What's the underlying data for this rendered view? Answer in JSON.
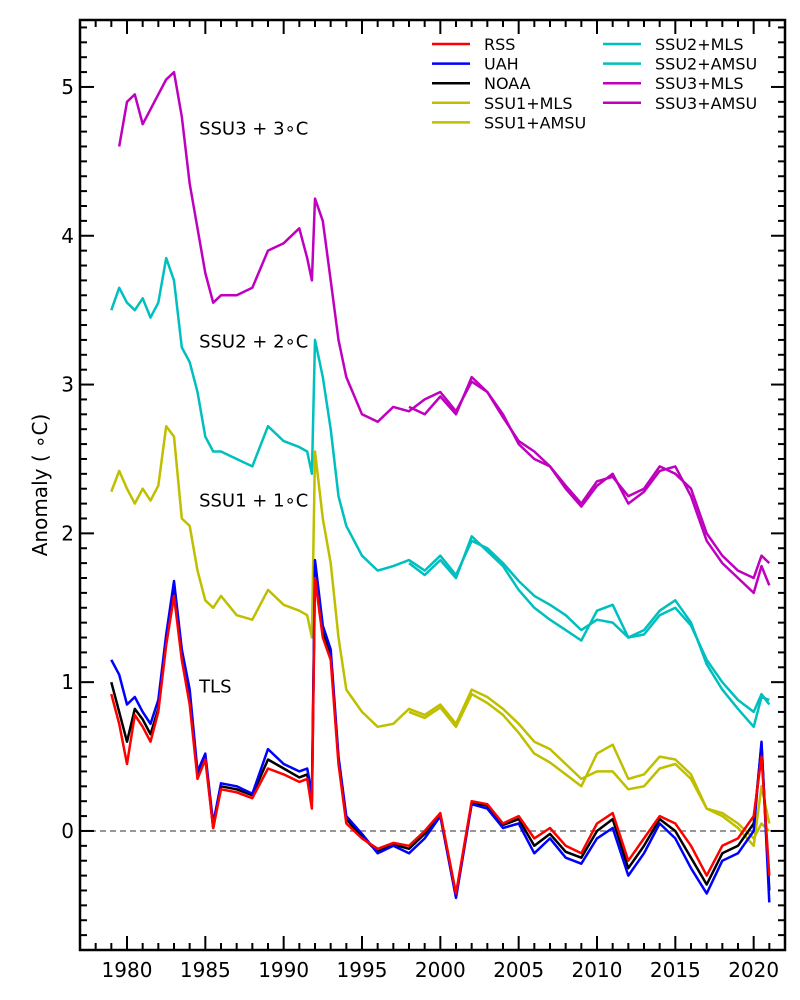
{
  "chart_data": {
    "type": "line",
    "title": "",
    "xlabel": "",
    "ylabel": "Anomaly ( ∘C)",
    "xlim": [
      1977,
      2022
    ],
    "ylim": [
      -0.8,
      5.45
    ],
    "xticks": [
      1980,
      1985,
      1990,
      1995,
      2000,
      2005,
      2010,
      2015,
      2020
    ],
    "xtick_labels": [
      "1980",
      "1985",
      "1990",
      "1995",
      "2000",
      "2005",
      "2010",
      "2015",
      "2020"
    ],
    "yticks": [
      0,
      1,
      2,
      3,
      4,
      5
    ],
    "ytick_labels": [
      "0",
      "1",
      "2",
      "3",
      "4",
      "5"
    ],
    "reference_line": {
      "y": 0,
      "style": "dashed",
      "color": "#777777"
    },
    "legend_position": "top-right",
    "annotations": [
      {
        "text": "SSU3 + 3∘C",
        "x": 1984.6,
        "y": 4.68
      },
      {
        "text": "SSU2 + 2∘C",
        "x": 1984.6,
        "y": 3.25
      },
      {
        "text": "SSU1 + 1∘C",
        "x": 1984.6,
        "y": 2.18
      },
      {
        "text": "TLS",
        "x": 1984.6,
        "y": 0.93
      }
    ],
    "series": [
      {
        "name": "RSS",
        "color": "#ff0000",
        "x": [
          1979,
          1979.5,
          1980,
          1980.5,
          1981,
          1981.5,
          1982,
          1982.5,
          1983,
          1983.5,
          1984,
          1984.5,
          1985,
          1985.5,
          1986,
          1987,
          1988,
          1989,
          1990,
          1991,
          1991.5,
          1991.8,
          1992,
          1992.5,
          1993,
          1993.5,
          1994,
          1995,
          1996,
          1997,
          1998,
          1999,
          2000,
          2001,
          2002,
          2003,
          2004,
          2005,
          2006,
          2007,
          2008,
          2009,
          2010,
          2011,
          2012,
          2013,
          2014,
          2015,
          2016,
          2017,
          2018,
          2019,
          2020,
          2020.5,
          2021
        ],
        "values": [
          0.92,
          0.72,
          0.45,
          0.78,
          0.7,
          0.6,
          0.8,
          1.25,
          1.58,
          1.15,
          0.85,
          0.35,
          0.48,
          0.02,
          0.28,
          0.26,
          0.22,
          0.42,
          0.38,
          0.33,
          0.35,
          0.15,
          1.7,
          1.3,
          1.15,
          0.45,
          0.05,
          -0.05,
          -0.12,
          -0.08,
          -0.1,
          0.0,
          0.12,
          -0.42,
          0.2,
          0.18,
          0.05,
          0.1,
          -0.05,
          0.02,
          -0.1,
          -0.15,
          0.05,
          0.12,
          -0.2,
          -0.05,
          0.1,
          0.05,
          -0.1,
          -0.3,
          -0.1,
          -0.05,
          0.1,
          0.5,
          -0.3
        ]
      },
      {
        "name": "UAH",
        "color": "#0000ff",
        "x": [
          1979,
          1979.5,
          1980,
          1980.5,
          1981,
          1981.5,
          1982,
          1982.5,
          1983,
          1983.5,
          1984,
          1984.5,
          1985,
          1985.5,
          1986,
          1987,
          1988,
          1989,
          1990,
          1991,
          1991.5,
          1991.8,
          1992,
          1992.5,
          1993,
          1993.5,
          1994,
          1995,
          1996,
          1997,
          1998,
          1999,
          2000,
          2001,
          2002,
          2003,
          2004,
          2005,
          2006,
          2007,
          2008,
          2009,
          2010,
          2011,
          2012,
          2013,
          2014,
          2015,
          2016,
          2017,
          2018,
          2019,
          2020,
          2020.5,
          2021
        ],
        "values": [
          1.15,
          1.05,
          0.85,
          0.9,
          0.8,
          0.72,
          0.88,
          1.32,
          1.68,
          1.22,
          0.95,
          0.4,
          0.52,
          0.05,
          0.32,
          0.3,
          0.25,
          0.55,
          0.45,
          0.4,
          0.42,
          0.25,
          1.82,
          1.38,
          1.22,
          0.5,
          0.1,
          -0.02,
          -0.15,
          -0.1,
          -0.15,
          -0.05,
          0.1,
          -0.45,
          0.18,
          0.15,
          0.02,
          0.05,
          -0.15,
          -0.05,
          -0.18,
          -0.22,
          -0.05,
          0.02,
          -0.3,
          -0.15,
          0.05,
          -0.05,
          -0.25,
          -0.42,
          -0.2,
          -0.15,
          0.0,
          0.6,
          -0.48
        ]
      },
      {
        "name": "NOAA",
        "color": "#000000",
        "x": [
          1979,
          1979.5,
          1980,
          1980.5,
          1981,
          1981.5,
          1982,
          1982.5,
          1983,
          1983.5,
          1984,
          1984.5,
          1985,
          1985.5,
          1986,
          1987,
          1988,
          1989,
          1990,
          1991,
          1991.5,
          1991.8,
          1992,
          1992.5,
          1993,
          1993.5,
          1994,
          1995,
          1996,
          1997,
          1998,
          1999,
          2000,
          2001,
          2002,
          2003,
          2004,
          2005,
          2006,
          2007,
          2008,
          2009,
          2010,
          2011,
          2012,
          2013,
          2014,
          2015,
          2016,
          2017,
          2018,
          2019,
          2020,
          2020.5,
          2021
        ],
        "values": [
          1.0,
          0.8,
          0.6,
          0.82,
          0.75,
          0.65,
          0.82,
          1.28,
          1.62,
          1.18,
          0.9,
          0.38,
          0.5,
          0.02,
          0.3,
          0.28,
          0.24,
          0.48,
          0.42,
          0.36,
          0.38,
          0.2,
          1.78,
          1.34,
          1.18,
          0.48,
          0.08,
          -0.04,
          -0.14,
          -0.09,
          -0.12,
          -0.02,
          0.11,
          -0.43,
          0.19,
          0.17,
          0.04,
          0.08,
          -0.1,
          -0.02,
          -0.14,
          -0.18,
          0.0,
          0.08,
          -0.25,
          -0.1,
          0.08,
          0.0,
          -0.18,
          -0.36,
          -0.15,
          -0.1,
          0.05,
          0.58,
          -0.4
        ]
      },
      {
        "name": "SSU1+MLS",
        "color": "#bfbf00",
        "x": [
          1979,
          1979.5,
          1980,
          1980.5,
          1981,
          1981.5,
          1982,
          1982.5,
          1983,
          1983.5,
          1984,
          1984.5,
          1985,
          1985.5,
          1986,
          1987,
          1988,
          1989,
          1990,
          1991,
          1991.5,
          1991.8,
          1992,
          1992.5,
          1993,
          1993.5,
          1994,
          1995,
          1996,
          1997,
          1998,
          1999,
          2000,
          2001,
          2002,
          2003,
          2004,
          2005,
          2006,
          2007,
          2008,
          2009,
          2010,
          2011,
          2012,
          2013,
          2014,
          2015,
          2016,
          2017,
          2018,
          2019,
          2020,
          2020.5,
          2021
        ],
        "values": [
          2.28,
          2.42,
          2.3,
          2.2,
          2.3,
          2.22,
          2.32,
          2.72,
          2.65,
          2.1,
          2.05,
          1.75,
          1.55,
          1.5,
          1.58,
          1.45,
          1.42,
          1.62,
          1.52,
          1.48,
          1.45,
          1.3,
          2.55,
          2.1,
          1.8,
          1.3,
          0.95,
          0.8,
          0.7,
          0.72,
          0.82,
          0.78,
          0.85,
          0.72,
          0.95,
          0.9,
          0.82,
          0.72,
          0.6,
          0.55,
          0.45,
          0.35,
          0.4,
          0.4,
          0.28,
          0.3,
          0.42,
          0.45,
          0.35,
          0.15,
          0.12,
          0.05,
          -0.05,
          0.05,
          0.0
        ]
      },
      {
        "name": "SSU1+AMSU",
        "color": "#bfbf00",
        "x": [
          1998,
          1999,
          2000,
          2001,
          2002,
          2003,
          2004,
          2005,
          2006,
          2007,
          2008,
          2009,
          2010,
          2011,
          2012,
          2013,
          2014,
          2015,
          2016,
          2017,
          2018,
          2019,
          2020,
          2020.5,
          2021
        ],
        "values": [
          0.8,
          0.76,
          0.83,
          0.7,
          0.92,
          0.86,
          0.78,
          0.66,
          0.52,
          0.46,
          0.38,
          0.3,
          0.52,
          0.58,
          0.35,
          0.38,
          0.5,
          0.48,
          0.38,
          0.15,
          0.1,
          0.02,
          -0.1,
          0.3,
          0.05
        ]
      },
      {
        "name": "SSU2+MLS",
        "color": "#00bfbf",
        "x": [
          1979,
          1979.5,
          1980,
          1980.5,
          1981,
          1981.5,
          1982,
          1982.5,
          1983,
          1983.5,
          1984,
          1984.5,
          1985,
          1985.5,
          1986,
          1987,
          1988,
          1989,
          1990,
          1991,
          1991.5,
          1991.8,
          1992,
          1992.5,
          1993,
          1993.5,
          1994,
          1995,
          1996,
          1997,
          1998,
          1999,
          2000,
          2001,
          2002,
          2003,
          2004,
          2005,
          2006,
          2007,
          2008,
          2009,
          2010,
          2011,
          2012,
          2013,
          2014,
          2015,
          2016,
          2017,
          2018,
          2019,
          2020,
          2020.5,
          2021
        ],
        "values": [
          3.5,
          3.65,
          3.55,
          3.5,
          3.58,
          3.45,
          3.55,
          3.85,
          3.7,
          3.25,
          3.15,
          2.95,
          2.65,
          2.55,
          2.55,
          2.5,
          2.45,
          2.72,
          2.62,
          2.58,
          2.55,
          2.4,
          3.3,
          3.05,
          2.7,
          2.25,
          2.05,
          1.85,
          1.75,
          1.78,
          1.82,
          1.75,
          1.85,
          1.72,
          1.95,
          1.9,
          1.8,
          1.68,
          1.58,
          1.52,
          1.45,
          1.35,
          1.42,
          1.4,
          1.3,
          1.32,
          1.45,
          1.5,
          1.38,
          1.15,
          1.0,
          0.88,
          0.8,
          0.92,
          0.85
        ]
      },
      {
        "name": "SSU2+AMSU",
        "color": "#00bfbf",
        "x": [
          1998,
          1999,
          2000,
          2001,
          2002,
          2003,
          2004,
          2005,
          2006,
          2007,
          2008,
          2009,
          2010,
          2011,
          2012,
          2013,
          2014,
          2015,
          2016,
          2017,
          2018,
          2019,
          2020,
          2020.5,
          2021
        ],
        "values": [
          1.8,
          1.72,
          1.82,
          1.7,
          1.98,
          1.88,
          1.78,
          1.62,
          1.5,
          1.42,
          1.35,
          1.28,
          1.48,
          1.52,
          1.3,
          1.35,
          1.48,
          1.55,
          1.4,
          1.12,
          0.95,
          0.82,
          0.7,
          0.9,
          0.88
        ]
      },
      {
        "name": "SSU3+MLS",
        "color": "#bf00bf",
        "x": [
          1979.5,
          1980,
          1980.5,
          1981,
          1981.5,
          1982,
          1982.5,
          1983,
          1983.5,
          1984,
          1984.5,
          1985,
          1985.5,
          1986,
          1987,
          1988,
          1989,
          1990,
          1991,
          1991.5,
          1991.8,
          1992,
          1992.5,
          1993,
          1993.5,
          1994,
          1995,
          1996,
          1997,
          1998,
          1999,
          2000,
          2001,
          2002,
          2003,
          2004,
          2005,
          2006,
          2007,
          2008,
          2009,
          2010,
          2011,
          2012,
          2013,
          2014,
          2015,
          2016,
          2017,
          2018,
          2019,
          2020,
          2020.5,
          2021
        ],
        "values": [
          4.6,
          4.9,
          4.95,
          4.75,
          4.85,
          4.95,
          5.05,
          5.1,
          4.8,
          4.35,
          4.05,
          3.75,
          3.55,
          3.6,
          3.6,
          3.65,
          3.9,
          3.95,
          4.05,
          3.85,
          3.7,
          4.25,
          4.1,
          3.7,
          3.3,
          3.05,
          2.8,
          2.75,
          2.85,
          2.82,
          2.9,
          2.95,
          2.82,
          3.02,
          2.95,
          2.8,
          2.6,
          2.5,
          2.45,
          2.32,
          2.2,
          2.35,
          2.38,
          2.25,
          2.3,
          2.45,
          2.4,
          2.3,
          2.0,
          1.85,
          1.75,
          1.7,
          1.85,
          1.8
        ]
      },
      {
        "name": "SSU3+AMSU",
        "color": "#bf00bf",
        "x": [
          1998,
          1999,
          2000,
          2001,
          2002,
          2003,
          2004,
          2005,
          2006,
          2007,
          2008,
          2009,
          2010,
          2011,
          2012,
          2013,
          2014,
          2015,
          2016,
          2017,
          2018,
          2019,
          2020,
          2020.5,
          2021
        ],
        "values": [
          2.85,
          2.8,
          2.92,
          2.8,
          3.05,
          2.95,
          2.78,
          2.62,
          2.55,
          2.45,
          2.3,
          2.18,
          2.32,
          2.4,
          2.2,
          2.28,
          2.42,
          2.45,
          2.25,
          1.95,
          1.8,
          1.7,
          1.6,
          1.78,
          1.65
        ]
      }
    ]
  }
}
